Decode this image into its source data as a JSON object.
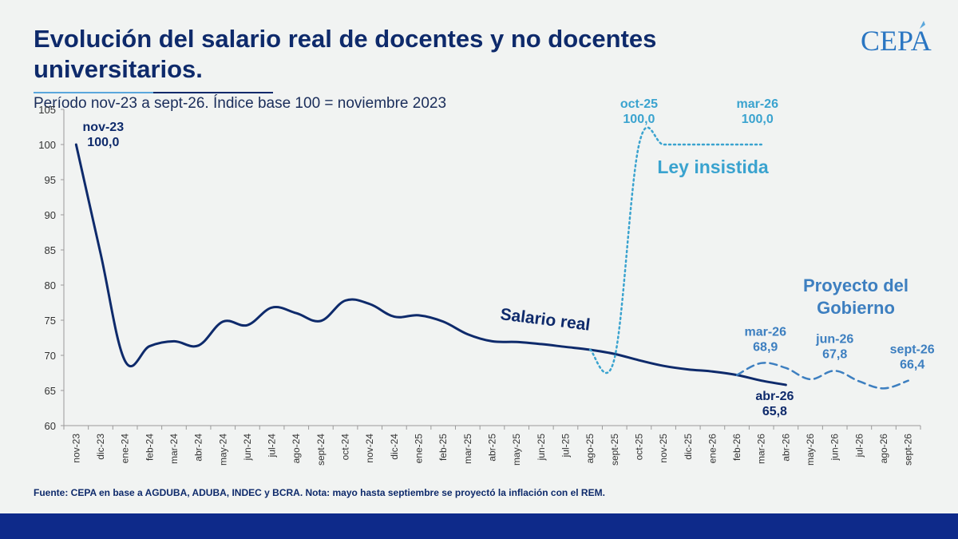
{
  "header": {
    "title": "Evolución del salario real de docentes y no docentes universitarios.",
    "subtitle": "Período nov-23 a sept-26. Índice base 100 = noviembre 2023",
    "logo": "CEPA"
  },
  "colors": {
    "salario_real": "#0e2a6b",
    "ley_insistida": "#3aa3cf",
    "proyecto": "#3d7fc0",
    "axis": "#9a9a9a"
  },
  "chart_data": {
    "type": "line",
    "ylim": [
      60,
      105
    ],
    "yticks": [
      60,
      65,
      70,
      75,
      80,
      85,
      90,
      95,
      100,
      105
    ],
    "categories": [
      "nov-23",
      "dic-23",
      "ene-24",
      "feb-24",
      "mar-24",
      "abr-24",
      "may-24",
      "jun-24",
      "jul-24",
      "ago-24",
      "sept-24",
      "oct-24",
      "nov-24",
      "dic-24",
      "ene-25",
      "feb-25",
      "mar-25",
      "abr-25",
      "may-25",
      "jun-25",
      "jul-25",
      "ago-25",
      "sept-25",
      "oct-25",
      "nov-25",
      "dic-25",
      "ene-26",
      "feb-26",
      "mar-26",
      "abr-26",
      "may-26",
      "jun-26",
      "jul-26",
      "ago-26",
      "sept-26"
    ],
    "series": [
      {
        "name": "Salario real",
        "style": "solid",
        "x": [
          "nov-23",
          "dic-23",
          "ene-24",
          "feb-24",
          "mar-24",
          "abr-24",
          "may-24",
          "jun-24",
          "jul-24",
          "ago-24",
          "sept-24",
          "oct-24",
          "nov-24",
          "dic-24",
          "ene-25",
          "feb-25",
          "mar-25",
          "abr-25",
          "may-25",
          "jun-25",
          "jul-25",
          "ago-25",
          "sept-25",
          "oct-25",
          "nov-25",
          "dic-25",
          "ene-26",
          "feb-26",
          "mar-26",
          "abr-26"
        ],
        "values": [
          100.0,
          84.5,
          69.2,
          71.3,
          72.0,
          71.4,
          74.8,
          74.3,
          76.8,
          76.0,
          74.9,
          77.8,
          77.3,
          75.5,
          75.7,
          74.8,
          73.0,
          72.0,
          71.9,
          71.6,
          71.2,
          70.8,
          70.2,
          69.3,
          68.5,
          68.0,
          67.7,
          67.2,
          66.4,
          65.8
        ]
      },
      {
        "name": "Ley insistida",
        "style": "dotted",
        "x": [
          "ago-25",
          "sept-25",
          "oct-25",
          "nov-25",
          "dic-25",
          "ene-26",
          "feb-26",
          "mar-26"
        ],
        "values": [
          70.8,
          69.6,
          100.0,
          100.0,
          100.0,
          100.0,
          100.0,
          100.0
        ]
      },
      {
        "name": "Proyecto del Gobierno",
        "style": "dashed",
        "x": [
          "feb-26",
          "mar-26",
          "abr-26",
          "may-26",
          "jun-26",
          "jul-26",
          "ago-26",
          "sept-26"
        ],
        "values": [
          67.2,
          68.9,
          68.2,
          66.6,
          67.8,
          66.3,
          65.3,
          66.4
        ]
      }
    ],
    "annotations": [
      {
        "id": "nov23",
        "label": "nov-23",
        "value": "100,0",
        "x": "nov-23",
        "y": 100.0,
        "color": "#0e2a6b"
      },
      {
        "id": "oct25",
        "label": "oct-25",
        "value": "100,0",
        "x": "oct-25",
        "y": 100.0,
        "color": "#3aa3cf"
      },
      {
        "id": "mar26a",
        "label": "mar-26",
        "value": "100,0",
        "x": "mar-26",
        "y": 100.0,
        "color": "#3aa3cf"
      },
      {
        "id": "mar26b",
        "label": "mar-26",
        "value": "68,9",
        "x": "mar-26",
        "y": 68.9,
        "color": "#3d7fc0"
      },
      {
        "id": "jun26",
        "label": "jun-26",
        "value": "67,8",
        "x": "jun-26",
        "y": 67.8,
        "color": "#3d7fc0"
      },
      {
        "id": "sept26",
        "label": "sept-26",
        "value": "66,4",
        "x": "sept-26",
        "y": 66.4,
        "color": "#3d7fc0"
      },
      {
        "id": "abr26",
        "label": "abr-26",
        "value": "65,8",
        "x": "abr-26",
        "y": 65.8,
        "color": "#0e2a6b"
      }
    ],
    "series_labels": {
      "salario_real": "Salario real",
      "ley_insistida": "Ley insistida",
      "proyecto_line1": "Proyecto del",
      "proyecto_line2": "Gobierno"
    },
    "grid": false
  },
  "footer": {
    "note": "Fuente: CEPA en base a AGDUBA, ADUBA, INDEC y BCRA. Nota: mayo hasta septiembre se proyectó la inflación con el REM."
  }
}
